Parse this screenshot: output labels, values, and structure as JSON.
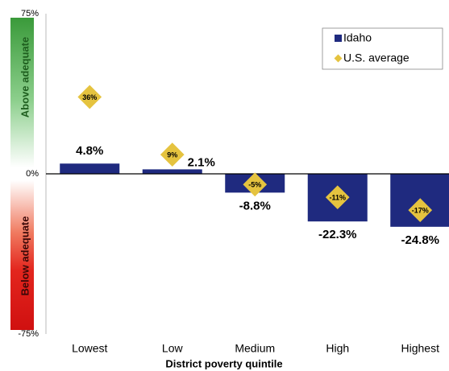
{
  "chart_data": {
    "type": "bar",
    "x_label": "District poverty quintile",
    "categories": [
      "Lowest",
      "Low",
      "Medium",
      "High",
      "Highest"
    ],
    "series": [
      {
        "name": "Idaho",
        "color": "#1f2a7f",
        "values": [
          4.8,
          2.1,
          -8.8,
          -22.3,
          -24.8
        ],
        "value_labels": [
          "4.8%",
          "2.1%",
          "-8.8%",
          "-22.3%",
          "-24.8%"
        ]
      },
      {
        "name": "U.S. average",
        "color": "#e5c33f",
        "marker": "diamond",
        "values": [
          36,
          9,
          -5,
          -11,
          -17
        ],
        "value_labels": [
          "36%",
          "9%",
          "-5%",
          "-11%",
          "-17%"
        ]
      }
    ],
    "ylim": [
      -75,
      75
    ],
    "yticks": [
      {
        "value": -75,
        "label": "-75%"
      },
      {
        "value": 0,
        "label": "0%"
      },
      {
        "value": 75,
        "label": "75%"
      }
    ],
    "zones": {
      "above": "Above adequate",
      "below": "Below adequate"
    },
    "legend": "upper right"
  }
}
